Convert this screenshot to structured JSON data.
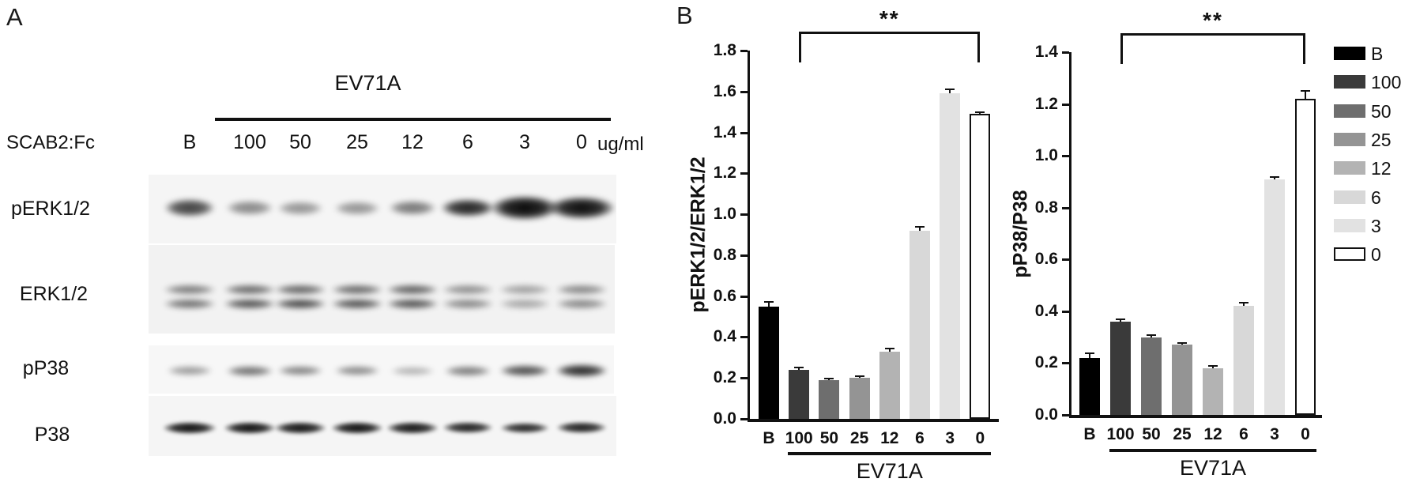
{
  "panel_a": {
    "label": "A",
    "header": "EV71A",
    "left_header": "SCAB2:Fc",
    "unit": "ug/ml",
    "lane_labels": [
      "B",
      "100",
      "50",
      "25",
      "12",
      "6",
      "3",
      "0"
    ],
    "rows": [
      {
        "label": "pERK1/2",
        "type": "single",
        "intensities": [
          0.75,
          0.45,
          0.4,
          0.4,
          0.52,
          0.88,
          1.0,
          0.98
        ],
        "band_w": [
          62,
          58,
          56,
          56,
          58,
          66,
          84,
          82
        ],
        "band_h": [
          22,
          18,
          17,
          17,
          18,
          22,
          30,
          28
        ]
      },
      {
        "label": "ERK1/2",
        "type": "doublet",
        "intensities_upper": [
          0.5,
          0.58,
          0.6,
          0.58,
          0.62,
          0.42,
          0.35,
          0.45
        ],
        "intensities_lower": [
          0.55,
          0.68,
          0.72,
          0.68,
          0.68,
          0.45,
          0.32,
          0.45
        ]
      },
      {
        "label": "pP38",
        "type": "single",
        "intensities": [
          0.38,
          0.55,
          0.48,
          0.45,
          0.28,
          0.5,
          0.7,
          0.85
        ],
        "band_w": [
          56,
          58,
          56,
          56,
          54,
          58,
          62,
          64
        ],
        "band_h": [
          12,
          13,
          12,
          12,
          11,
          13,
          14,
          16
        ]
      },
      {
        "label": "P38",
        "type": "single",
        "intensities": [
          0.95,
          0.95,
          0.93,
          0.95,
          0.92,
          0.88,
          0.85,
          0.88
        ],
        "band_w": [
          66,
          64,
          64,
          64,
          64,
          62,
          60,
          62
        ],
        "band_h": [
          15,
          15,
          15,
          15,
          15,
          14,
          13,
          14
        ]
      }
    ]
  },
  "panel_b": {
    "label": "B",
    "legend": {
      "labels": [
        "B",
        "100",
        "50",
        "25",
        "12",
        "6",
        "3",
        "0"
      ],
      "colors": [
        "#000000",
        "#3a3a3a",
        "#6e6e6e",
        "#949494",
        "#b3b3b3",
        "#d8d8d8",
        "#e2e2e2",
        "#ffffff"
      ]
    }
  },
  "chart_data": [
    {
      "type": "bar",
      "ylabel": "pERK1/2/ERK1/2",
      "categories": [
        "B",
        "100",
        "50",
        "25",
        "12",
        "6",
        "3",
        "0"
      ],
      "values": [
        0.55,
        0.24,
        0.19,
        0.2,
        0.33,
        0.92,
        1.59,
        1.49
      ],
      "errors": [
        0.02,
        0.01,
        0.008,
        0.006,
        0.012,
        0.018,
        0.02,
        0.008
      ],
      "bar_colors": [
        "#000000",
        "#3a3a3a",
        "#6e6e6e",
        "#949494",
        "#b3b3b3",
        "#d8d8d8",
        "#e2e2e2",
        "#ffffff"
      ],
      "ylim": [
        0,
        1.8
      ],
      "ytick_labels": [
        "0.0",
        "0.2",
        "0.4",
        "0.6",
        "0.8",
        "1.0",
        "1.2",
        "1.4",
        "1.6",
        "1.8"
      ],
      "group_label": "EV71A",
      "significance": "**",
      "grid": false,
      "legend_position": "right-of-second-chart"
    },
    {
      "type": "bar",
      "ylabel": "pP38/P38",
      "categories": [
        "B",
        "100",
        "50",
        "25",
        "12",
        "6",
        "3",
        "0"
      ],
      "values": [
        0.22,
        0.36,
        0.3,
        0.27,
        0.18,
        0.42,
        0.91,
        1.22
      ],
      "errors": [
        0.018,
        0.008,
        0.008,
        0.006,
        0.008,
        0.012,
        0.008,
        0.03
      ],
      "bar_colors": [
        "#000000",
        "#3a3a3a",
        "#6e6e6e",
        "#949494",
        "#b3b3b3",
        "#d8d8d8",
        "#e2e2e2",
        "#ffffff"
      ],
      "ylim": [
        0,
        1.4
      ],
      "ytick_labels": [
        "0.0",
        "0.2",
        "0.4",
        "0.6",
        "0.8",
        "1.0",
        "1.2",
        "1.4"
      ],
      "group_label": "EV71A",
      "significance": "**",
      "grid": false,
      "legend_position": "right"
    }
  ]
}
